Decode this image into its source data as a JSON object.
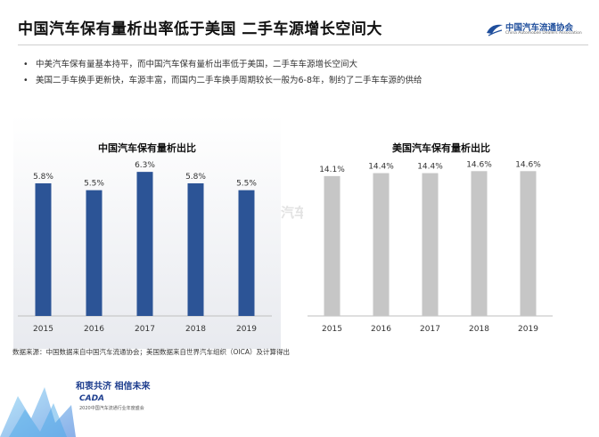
{
  "header": {
    "title": "中国汽车保有量析出率低于美国 二手车源增长空间大",
    "logo_cn": "中国汽车流通协会",
    "logo_en": "China Automobile Dealers Association"
  },
  "bullets": [
    "中美汽车保有量基本持平，而中国汽车保有量析出率低于美国，二手车车源增长空间大",
    "美国二手车换手更新快，车源丰富，而国内二手车换手周期较长一般为6-8年，制约了二手车车源的供给"
  ],
  "watermark": {
    "cn": "中国汽车流通协会",
    "en": "China Automobile Dealers Association"
  },
  "colors": {
    "china_bar": "#2c5496",
    "us_bar": "#c6c6c6",
    "logo_blue": "#1f4e9c"
  },
  "chart_data": [
    {
      "type": "bar",
      "title": "中国汽车保有量析出比",
      "categories": [
        "2015",
        "2016",
        "2017",
        "2018",
        "2019"
      ],
      "values": [
        5.8,
        5.5,
        6.3,
        5.8,
        5.5
      ],
      "labels": [
        "5.8%",
        "5.5%",
        "6.3%",
        "5.8%",
        "5.5%"
      ],
      "unit": "%",
      "ylim": [
        0,
        7.2
      ],
      "grid": false,
      "color": "#2c5496"
    },
    {
      "type": "bar",
      "title": "美国汽车保有量析出比",
      "categories": [
        "2015",
        "2016",
        "2017",
        "2018",
        "2019"
      ],
      "values": [
        14.1,
        14.4,
        14.4,
        14.6,
        14.6
      ],
      "labels": [
        "14.1%",
        "14.4%",
        "14.4%",
        "14.6%",
        "14.6%"
      ],
      "unit": "%",
      "ylim": [
        0,
        16.6
      ],
      "grid": false,
      "color": "#c6c6c6"
    }
  ],
  "footnote": "数据来源：中国数据来自中国汽车流通协会；美国数据来自世界汽车组织（OICA）及计算得出",
  "brand": {
    "slogan": "和衷共济 相信未来",
    "cada": "CADA",
    "sub": "2020中国汽车流通行业年度盛会"
  }
}
